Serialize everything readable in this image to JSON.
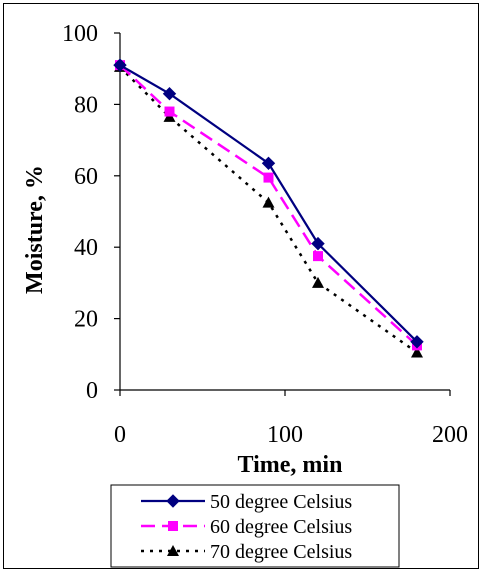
{
  "chart_data": {
    "type": "line",
    "title": "",
    "xlabel": "Time, min",
    "ylabel": "Moisture, %",
    "xlim": [
      0,
      200
    ],
    "ylim": [
      0,
      100
    ],
    "x_ticks": [
      0,
      100,
      200
    ],
    "y_ticks": [
      0,
      20,
      40,
      60,
      80,
      100
    ],
    "grid": false,
    "legend_position": "bottom",
    "series": [
      {
        "name": "50 degree Celsius",
        "color": "#000080",
        "marker": "diamond",
        "line_style": "solid",
        "x": [
          0,
          30,
          90,
          120,
          180
        ],
        "y": [
          91,
          83,
          63.5,
          41,
          13.5
        ]
      },
      {
        "name": "60 degree Celsius",
        "color": "#FF00FF",
        "marker": "square",
        "line_style": "dashed",
        "x": [
          0,
          30,
          90,
          120,
          180
        ],
        "y": [
          91,
          78,
          59.5,
          37.5,
          12.5
        ]
      },
      {
        "name": "70 degree Celsius",
        "color": "#000000",
        "marker": "triangle",
        "line_style": "dotted",
        "x": [
          0,
          30,
          90,
          120,
          180
        ],
        "y": [
          90.5,
          76.5,
          52.5,
          30,
          10.5
        ]
      }
    ]
  }
}
